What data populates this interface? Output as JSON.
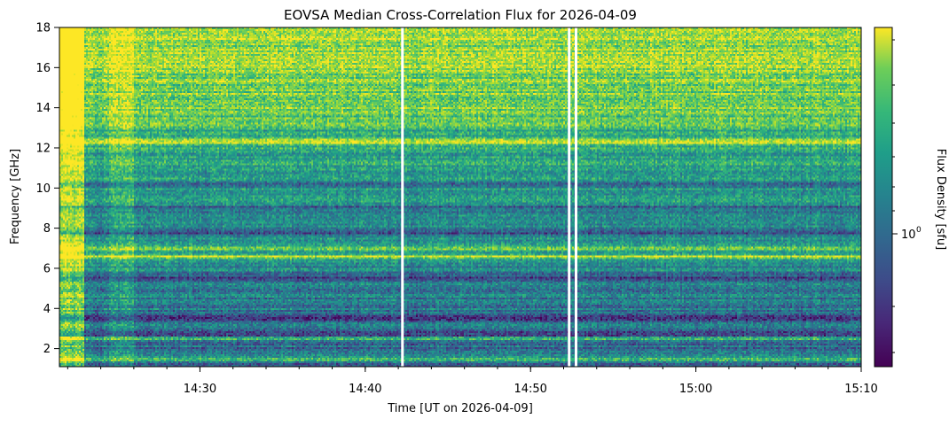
{
  "chart_data": [
    {
      "type": "heatmap",
      "title": "EOVSA Median Cross-Correlation Flux for 2026-04-09",
      "xlabel": "Time [UT on 2026-04-09]",
      "ylabel": "Frequency [GHz]",
      "x_range": [
        "14:21:30",
        "15:10:00"
      ],
      "y_range_ghz": [
        1.1,
        18.0
      ],
      "x_major_ticks": [
        "14:30",
        "14:40",
        "14:50",
        "15:00",
        "15:10"
      ],
      "x_minor_tick_step_minutes": 2,
      "y_ticks": [
        2,
        4,
        6,
        8,
        10,
        12,
        14,
        16,
        18
      ],
      "colormap": "viridis",
      "colorbar": {
        "label": "Flux Density [sfu]",
        "scale": "log",
        "tick_labels": [
          "10",
          "0"
        ]
      },
      "features": {
        "data_gaps_ut": [
          "14:42:15",
          "14:52:20",
          "14:52:45"
        ],
        "strong_bands_ghz": [
          1.5,
          2.5,
          6.6,
          7.0,
          12.3
        ],
        "weak_bands_ghz": [
          2.7,
          3.5,
          5.5,
          7.8,
          9.0,
          10.2
        ],
        "high_flux_early_interval_ut": [
          "14:21:30",
          "14:23:00"
        ],
        "enhanced_interval_ut": [
          "14:24:30",
          "14:26:00"
        ]
      }
    }
  ]
}
